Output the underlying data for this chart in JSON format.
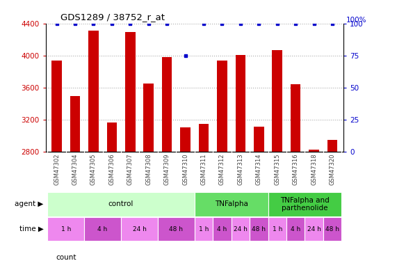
{
  "title": "GDS1289 / 38752_r_at",
  "samples": [
    "GSM47302",
    "GSM47304",
    "GSM47305",
    "GSM47306",
    "GSM47307",
    "GSM47308",
    "GSM47309",
    "GSM47310",
    "GSM47311",
    "GSM47312",
    "GSM47313",
    "GSM47314",
    "GSM47315",
    "GSM47316",
    "GSM47318",
    "GSM47320"
  ],
  "counts": [
    3940,
    3490,
    4310,
    3160,
    4290,
    3650,
    3980,
    3100,
    3140,
    3940,
    4010,
    3110,
    4070,
    3640,
    2820,
    2940
  ],
  "percentiles": [
    100,
    100,
    100,
    100,
    100,
    100,
    100,
    75,
    100,
    100,
    100,
    100,
    100,
    100,
    100,
    100
  ],
  "ylim_left": [
    2800,
    4400
  ],
  "ylim_right": [
    0,
    100
  ],
  "yticks_left": [
    2800,
    3200,
    3600,
    4000,
    4400
  ],
  "yticks_right": [
    0,
    25,
    50,
    75,
    100
  ],
  "bar_color": "#cc0000",
  "percentile_color": "#0000cc",
  "agent_groups": [
    {
      "label": "control",
      "start": 0,
      "end": 7,
      "color": "#ccffcc"
    },
    {
      "label": "TNFalpha",
      "start": 8,
      "end": 11,
      "color": "#66dd66"
    },
    {
      "label": "TNFalpha and\nparthenolide",
      "start": 12,
      "end": 15,
      "color": "#44cc44"
    }
  ],
  "time_groups": [
    {
      "label": "1 h",
      "start": 0,
      "end": 1,
      "color": "#ee88ee"
    },
    {
      "label": "4 h",
      "start": 2,
      "end": 3,
      "color": "#cc55cc"
    },
    {
      "label": "24 h",
      "start": 4,
      "end": 5,
      "color": "#ee88ee"
    },
    {
      "label": "48 h",
      "start": 6,
      "end": 7,
      "color": "#cc55cc"
    },
    {
      "label": "1 h",
      "start": 8,
      "end": 8,
      "color": "#ee88ee"
    },
    {
      "label": "4 h",
      "start": 9,
      "end": 9,
      "color": "#cc55cc"
    },
    {
      "label": "24 h",
      "start": 10,
      "end": 10,
      "color": "#ee88ee"
    },
    {
      "label": "48 h",
      "start": 11,
      "end": 11,
      "color": "#cc55cc"
    },
    {
      "label": "1 h",
      "start": 12,
      "end": 12,
      "color": "#ee88ee"
    },
    {
      "label": "4 h",
      "start": 13,
      "end": 13,
      "color": "#cc55cc"
    },
    {
      "label": "24 h",
      "start": 14,
      "end": 14,
      "color": "#ee88ee"
    },
    {
      "label": "48 h",
      "start": 15,
      "end": 15,
      "color": "#cc55cc"
    }
  ],
  "left_label_color": "#cc0000",
  "right_label_color": "#0000cc",
  "grid_color": "#aaaaaa",
  "bg_color": "#ffffff",
  "xticklabel_color": "#444444",
  "xticklabel_bg": "#dddddd"
}
